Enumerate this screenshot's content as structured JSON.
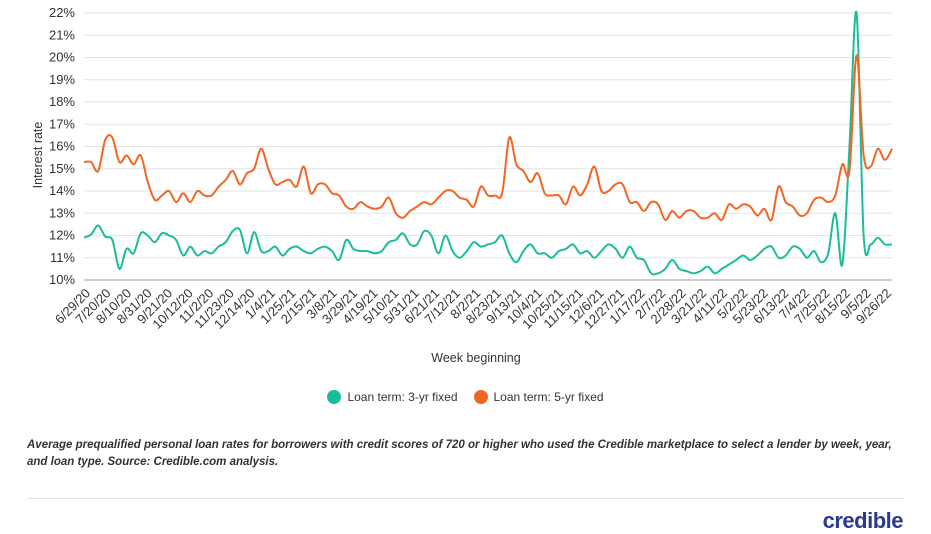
{
  "chart_data": {
    "type": "line",
    "xlabel": "Week beginning",
    "ylabel": "Interest rate",
    "ylim": [
      10,
      22
    ],
    "y_ticks": [
      "10%",
      "11%",
      "12%",
      "13%",
      "14%",
      "15%",
      "16%",
      "17%",
      "18%",
      "19%",
      "20%",
      "21%",
      "22%"
    ],
    "grid": "horizontal",
    "legend_position": "bottom",
    "x_ticks": [
      "6/29/20",
      "7/20/20",
      "8/10/20",
      "8/31/20",
      "9/21/20",
      "10/12/20",
      "11/2/20",
      "11/23/20",
      "12/14/20",
      "1/4/21",
      "1/25/21",
      "2/15/21",
      "3/8/21",
      "3/29/21",
      "4/19/21",
      "5/10/21",
      "5/31/21",
      "6/21/21",
      "7/12/21",
      "8/2/21",
      "8/23/21",
      "9/13/21",
      "10/4/21",
      "10/25/21",
      "11/15/21",
      "12/6/21",
      "12/27/21",
      "1/17/22",
      "2/7/22",
      "2/28/22",
      "3/21/22",
      "4/11/22",
      "5/2/22",
      "5/23/22",
      "6/13/22",
      "7/4/22",
      "7/25/22",
      "8/15/22",
      "9/5/22",
      "9/26/22"
    ],
    "series": [
      {
        "name": "Loan term: 3-yr fixed",
        "color": "#1abc9c",
        "values": [
          11.9,
          12.05,
          12.45,
          11.95,
          11.8,
          10.5,
          11.4,
          11.2,
          12.1,
          12.0,
          11.7,
          12.1,
          12.0,
          11.8,
          11.1,
          11.5,
          11.1,
          11.3,
          11.2,
          11.5,
          11.7,
          12.2,
          12.25,
          11.2,
          12.15,
          11.3,
          11.3,
          11.5,
          11.1,
          11.4,
          11.5,
          11.3,
          11.2,
          11.4,
          11.5,
          11.3,
          10.9,
          11.8,
          11.4,
          11.3,
          11.3,
          11.2,
          11.3,
          11.7,
          11.8,
          12.1,
          11.6,
          11.6,
          12.2,
          12.0,
          11.2,
          12.0,
          11.3,
          11.0,
          11.3,
          11.7,
          11.5,
          11.6,
          11.7,
          12.0,
          11.2,
          10.8,
          11.3,
          11.6,
          11.2,
          11.2,
          11.0,
          11.3,
          11.4,
          11.6,
          11.2,
          11.3,
          11.0,
          11.3,
          11.6,
          11.4,
          11.0,
          11.5,
          11.0,
          10.9,
          10.3,
          10.3,
          10.5,
          10.9,
          10.5,
          10.4,
          10.3,
          10.4,
          10.6,
          10.3,
          10.5,
          10.7,
          10.9,
          11.1,
          10.9,
          11.1,
          11.4,
          11.5,
          11.0,
          11.1,
          11.5,
          11.4,
          11.0,
          11.3,
          10.8,
          11.2,
          13.0,
          10.7,
          16.0,
          22.0,
          12.0,
          11.6,
          11.9,
          11.6,
          11.6
        ]
      },
      {
        "name": "Loan term: 5-yr fixed",
        "color": "#f26522",
        "values": [
          15.3,
          15.3,
          14.9,
          16.3,
          16.4,
          15.3,
          15.6,
          15.2,
          15.6,
          14.4,
          13.6,
          13.8,
          14.0,
          13.5,
          13.9,
          13.5,
          14.0,
          13.8,
          13.8,
          14.2,
          14.5,
          14.9,
          14.3,
          14.8,
          15.0,
          15.9,
          15.0,
          14.3,
          14.4,
          14.5,
          14.2,
          15.1,
          13.9,
          14.3,
          14.3,
          13.9,
          13.8,
          13.3,
          13.2,
          13.5,
          13.3,
          13.2,
          13.3,
          13.7,
          13.0,
          12.8,
          13.1,
          13.3,
          13.5,
          13.4,
          13.7,
          14.0,
          14.0,
          13.7,
          13.6,
          13.3,
          14.2,
          13.8,
          13.8,
          13.9,
          16.4,
          15.2,
          14.9,
          14.4,
          14.8,
          13.9,
          13.8,
          13.8,
          13.4,
          14.2,
          13.8,
          14.3,
          15.1,
          14.0,
          14.0,
          14.3,
          14.3,
          13.5,
          13.5,
          13.1,
          13.5,
          13.4,
          12.7,
          13.1,
          12.8,
          13.1,
          13.1,
          12.8,
          12.8,
          13.0,
          12.7,
          13.4,
          13.2,
          13.4,
          13.3,
          12.9,
          13.2,
          12.7,
          14.2,
          13.5,
          13.3,
          12.9,
          13.0,
          13.6,
          13.7,
          13.5,
          13.8,
          15.2,
          14.9,
          20.1,
          15.6,
          15.1,
          15.9,
          15.4,
          15.9
        ]
      }
    ]
  },
  "caption": "Average prequalified personal loan rates for borrowers with credit scores of 720 or higher who used the Credible marketplace to select a lender by week, year, and loan type. Source: Credible.com analysis.",
  "brand": "credible"
}
